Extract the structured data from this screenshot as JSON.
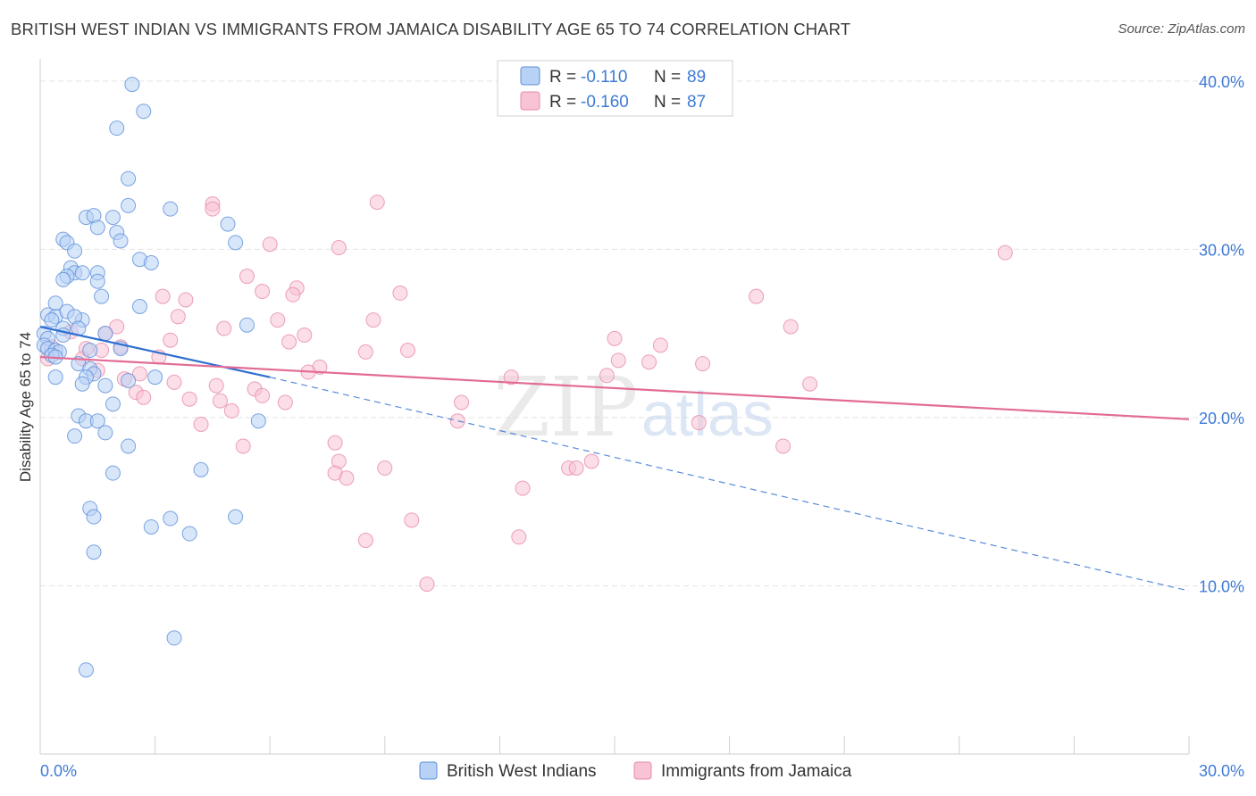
{
  "title": "BRITISH WEST INDIAN VS IMMIGRANTS FROM JAMAICA DISABILITY AGE 65 TO 74 CORRELATION CHART",
  "source": "Source: ZipAtlas.com",
  "watermark": {
    "zip": "ZIP",
    "atlas": "atlas"
  },
  "colors": {
    "blue_fill": "#b8d2f5",
    "blue_stroke": "#5b8fd9",
    "blue_line": "#2f6fd0",
    "pink_fill": "#f8c3d4",
    "pink_stroke": "#e98aaa",
    "pink_line": "#e26b95",
    "grid": "#e3e3e3",
    "tick_text": "#3f7bd6"
  },
  "legend": {
    "rows": [
      {
        "r_label": "R =",
        "r_value": "-0.110",
        "n_label": "N =",
        "n_value": "89"
      },
      {
        "r_label": "R =",
        "r_value": "-0.160",
        "n_label": "N =",
        "n_value": "87"
      }
    ]
  },
  "bottom_legend": [
    "British West Indians",
    "Immigrants from Jamaica"
  ],
  "chart_data": {
    "type": "scatter",
    "title": "BRITISH WEST INDIAN VS IMMIGRANTS FROM JAMAICA DISABILITY AGE 65 TO 74 CORRELATION CHART",
    "xlabel": "",
    "ylabel": "Disability Age 65 to 74",
    "xlim": [
      0,
      30
    ],
    "ylim": [
      0,
      41
    ],
    "x_tick_labels": [
      "0.0%",
      "30.0%"
    ],
    "y_ticks": [
      10,
      20,
      30,
      40
    ],
    "y_tick_labels": [
      "10.0%",
      "20.0%",
      "30.0%",
      "40.0%"
    ],
    "grid": true,
    "series": [
      {
        "name": "British West Indians",
        "r": -0.11,
        "n": 89,
        "trend": {
          "x0": 0.0,
          "y0": 25.4,
          "x1": 6.0,
          "y1": 22.4,
          "dashed_to_x": 30.0,
          "dashed_to_y": 9.7
        },
        "points": [
          [
            2.4,
            39.8
          ],
          [
            2.7,
            38.2
          ],
          [
            2.0,
            37.2
          ],
          [
            2.3,
            34.2
          ],
          [
            2.3,
            32.6
          ],
          [
            3.4,
            32.4
          ],
          [
            1.2,
            31.9
          ],
          [
            1.9,
            31.9
          ],
          [
            1.4,
            32.0
          ],
          [
            4.9,
            31.5
          ],
          [
            1.5,
            31.3
          ],
          [
            2.0,
            31.0
          ],
          [
            0.6,
            30.6
          ],
          [
            0.7,
            30.4
          ],
          [
            2.1,
            30.5
          ],
          [
            5.1,
            30.4
          ],
          [
            0.9,
            29.9
          ],
          [
            2.6,
            29.4
          ],
          [
            2.9,
            29.2
          ],
          [
            0.8,
            28.9
          ],
          [
            0.9,
            28.6
          ],
          [
            1.1,
            28.6
          ],
          [
            0.7,
            28.4
          ],
          [
            1.5,
            28.6
          ],
          [
            0.6,
            28.2
          ],
          [
            1.5,
            28.1
          ],
          [
            1.6,
            27.2
          ],
          [
            0.4,
            26.8
          ],
          [
            2.6,
            26.6
          ],
          [
            0.2,
            26.1
          ],
          [
            0.4,
            26.0
          ],
          [
            0.7,
            26.3
          ],
          [
            0.3,
            25.8
          ],
          [
            1.1,
            25.8
          ],
          [
            0.9,
            26.0
          ],
          [
            0.6,
            25.3
          ],
          [
            5.4,
            25.5
          ],
          [
            1.0,
            25.3
          ],
          [
            1.7,
            25.0
          ],
          [
            0.1,
            25.0
          ],
          [
            0.2,
            24.7
          ],
          [
            0.6,
            24.9
          ],
          [
            0.1,
            24.3
          ],
          [
            0.2,
            24.1
          ],
          [
            0.4,
            24.0
          ],
          [
            0.5,
            23.9
          ],
          [
            0.3,
            23.7
          ],
          [
            2.1,
            24.1
          ],
          [
            1.3,
            24.0
          ],
          [
            0.4,
            23.6
          ],
          [
            1.0,
            23.2
          ],
          [
            1.3,
            22.9
          ],
          [
            1.4,
            22.6
          ],
          [
            1.2,
            22.4
          ],
          [
            0.4,
            22.4
          ],
          [
            3.0,
            22.4
          ],
          [
            2.3,
            22.2
          ],
          [
            1.1,
            22.0
          ],
          [
            1.7,
            21.9
          ],
          [
            1.9,
            20.8
          ],
          [
            1.0,
            20.1
          ],
          [
            1.2,
            19.8
          ],
          [
            1.5,
            19.8
          ],
          [
            5.7,
            19.8
          ],
          [
            1.7,
            19.1
          ],
          [
            0.9,
            18.9
          ],
          [
            2.3,
            18.3
          ],
          [
            4.2,
            16.9
          ],
          [
            1.9,
            16.7
          ],
          [
            1.3,
            14.6
          ],
          [
            1.4,
            14.1
          ],
          [
            3.4,
            14.0
          ],
          [
            5.1,
            14.1
          ],
          [
            2.9,
            13.5
          ],
          [
            3.9,
            13.1
          ],
          [
            1.4,
            12.0
          ],
          [
            3.5,
            6.9
          ],
          [
            1.2,
            5.0
          ]
        ]
      },
      {
        "name": "Immigrants from Jamaica",
        "r": -0.16,
        "n": 87,
        "trend": {
          "x0": 0.0,
          "y0": 23.6,
          "x1": 30.0,
          "y1": 19.9
        },
        "points": [
          [
            4.5,
            32.7
          ],
          [
            4.5,
            32.4
          ],
          [
            8.8,
            32.8
          ],
          [
            6.0,
            30.3
          ],
          [
            7.8,
            30.1
          ],
          [
            25.2,
            29.8
          ],
          [
            5.4,
            28.4
          ],
          [
            6.7,
            27.7
          ],
          [
            5.8,
            27.5
          ],
          [
            6.6,
            27.3
          ],
          [
            9.4,
            27.4
          ],
          [
            3.2,
            27.2
          ],
          [
            3.8,
            27.0
          ],
          [
            18.7,
            27.2
          ],
          [
            3.6,
            26.0
          ],
          [
            6.2,
            25.8
          ],
          [
            8.7,
            25.8
          ],
          [
            19.6,
            25.4
          ],
          [
            2.0,
            25.4
          ],
          [
            4.8,
            25.3
          ],
          [
            0.8,
            25.1
          ],
          [
            1.7,
            25.0
          ],
          [
            3.4,
            24.6
          ],
          [
            6.5,
            24.5
          ],
          [
            6.9,
            24.9
          ],
          [
            15.0,
            24.7
          ],
          [
            16.2,
            24.3
          ],
          [
            2.1,
            24.2
          ],
          [
            1.6,
            24.0
          ],
          [
            1.2,
            24.1
          ],
          [
            0.3,
            24.2
          ],
          [
            9.6,
            24.0
          ],
          [
            8.5,
            23.9
          ],
          [
            3.1,
            23.6
          ],
          [
            1.1,
            23.5
          ],
          [
            0.2,
            23.5
          ],
          [
            15.1,
            23.4
          ],
          [
            15.9,
            23.3
          ],
          [
            17.3,
            23.2
          ],
          [
            7.3,
            23.0
          ],
          [
            1.5,
            22.8
          ],
          [
            2.6,
            22.6
          ],
          [
            7.0,
            22.7
          ],
          [
            12.3,
            22.4
          ],
          [
            14.8,
            22.5
          ],
          [
            2.2,
            22.3
          ],
          [
            3.5,
            22.1
          ],
          [
            5.6,
            21.7
          ],
          [
            4.6,
            21.9
          ],
          [
            20.1,
            22.0
          ],
          [
            2.5,
            21.5
          ],
          [
            5.8,
            21.3
          ],
          [
            2.7,
            21.2
          ],
          [
            3.9,
            21.1
          ],
          [
            4.7,
            21.0
          ],
          [
            6.4,
            20.9
          ],
          [
            11.0,
            20.9
          ],
          [
            5.0,
            20.4
          ],
          [
            10.9,
            19.8
          ],
          [
            4.2,
            19.6
          ],
          [
            17.2,
            19.7
          ],
          [
            7.7,
            18.5
          ],
          [
            5.3,
            18.3
          ],
          [
            19.4,
            18.3
          ],
          [
            7.8,
            17.4
          ],
          [
            14.4,
            17.4
          ],
          [
            9.0,
            17.0
          ],
          [
            13.8,
            17.0
          ],
          [
            14.0,
            17.0
          ],
          [
            7.7,
            16.7
          ],
          [
            8.0,
            16.4
          ],
          [
            12.6,
            15.8
          ],
          [
            9.7,
            13.9
          ],
          [
            12.5,
            12.9
          ],
          [
            8.5,
            12.7
          ],
          [
            10.1,
            10.1
          ]
        ]
      }
    ]
  }
}
